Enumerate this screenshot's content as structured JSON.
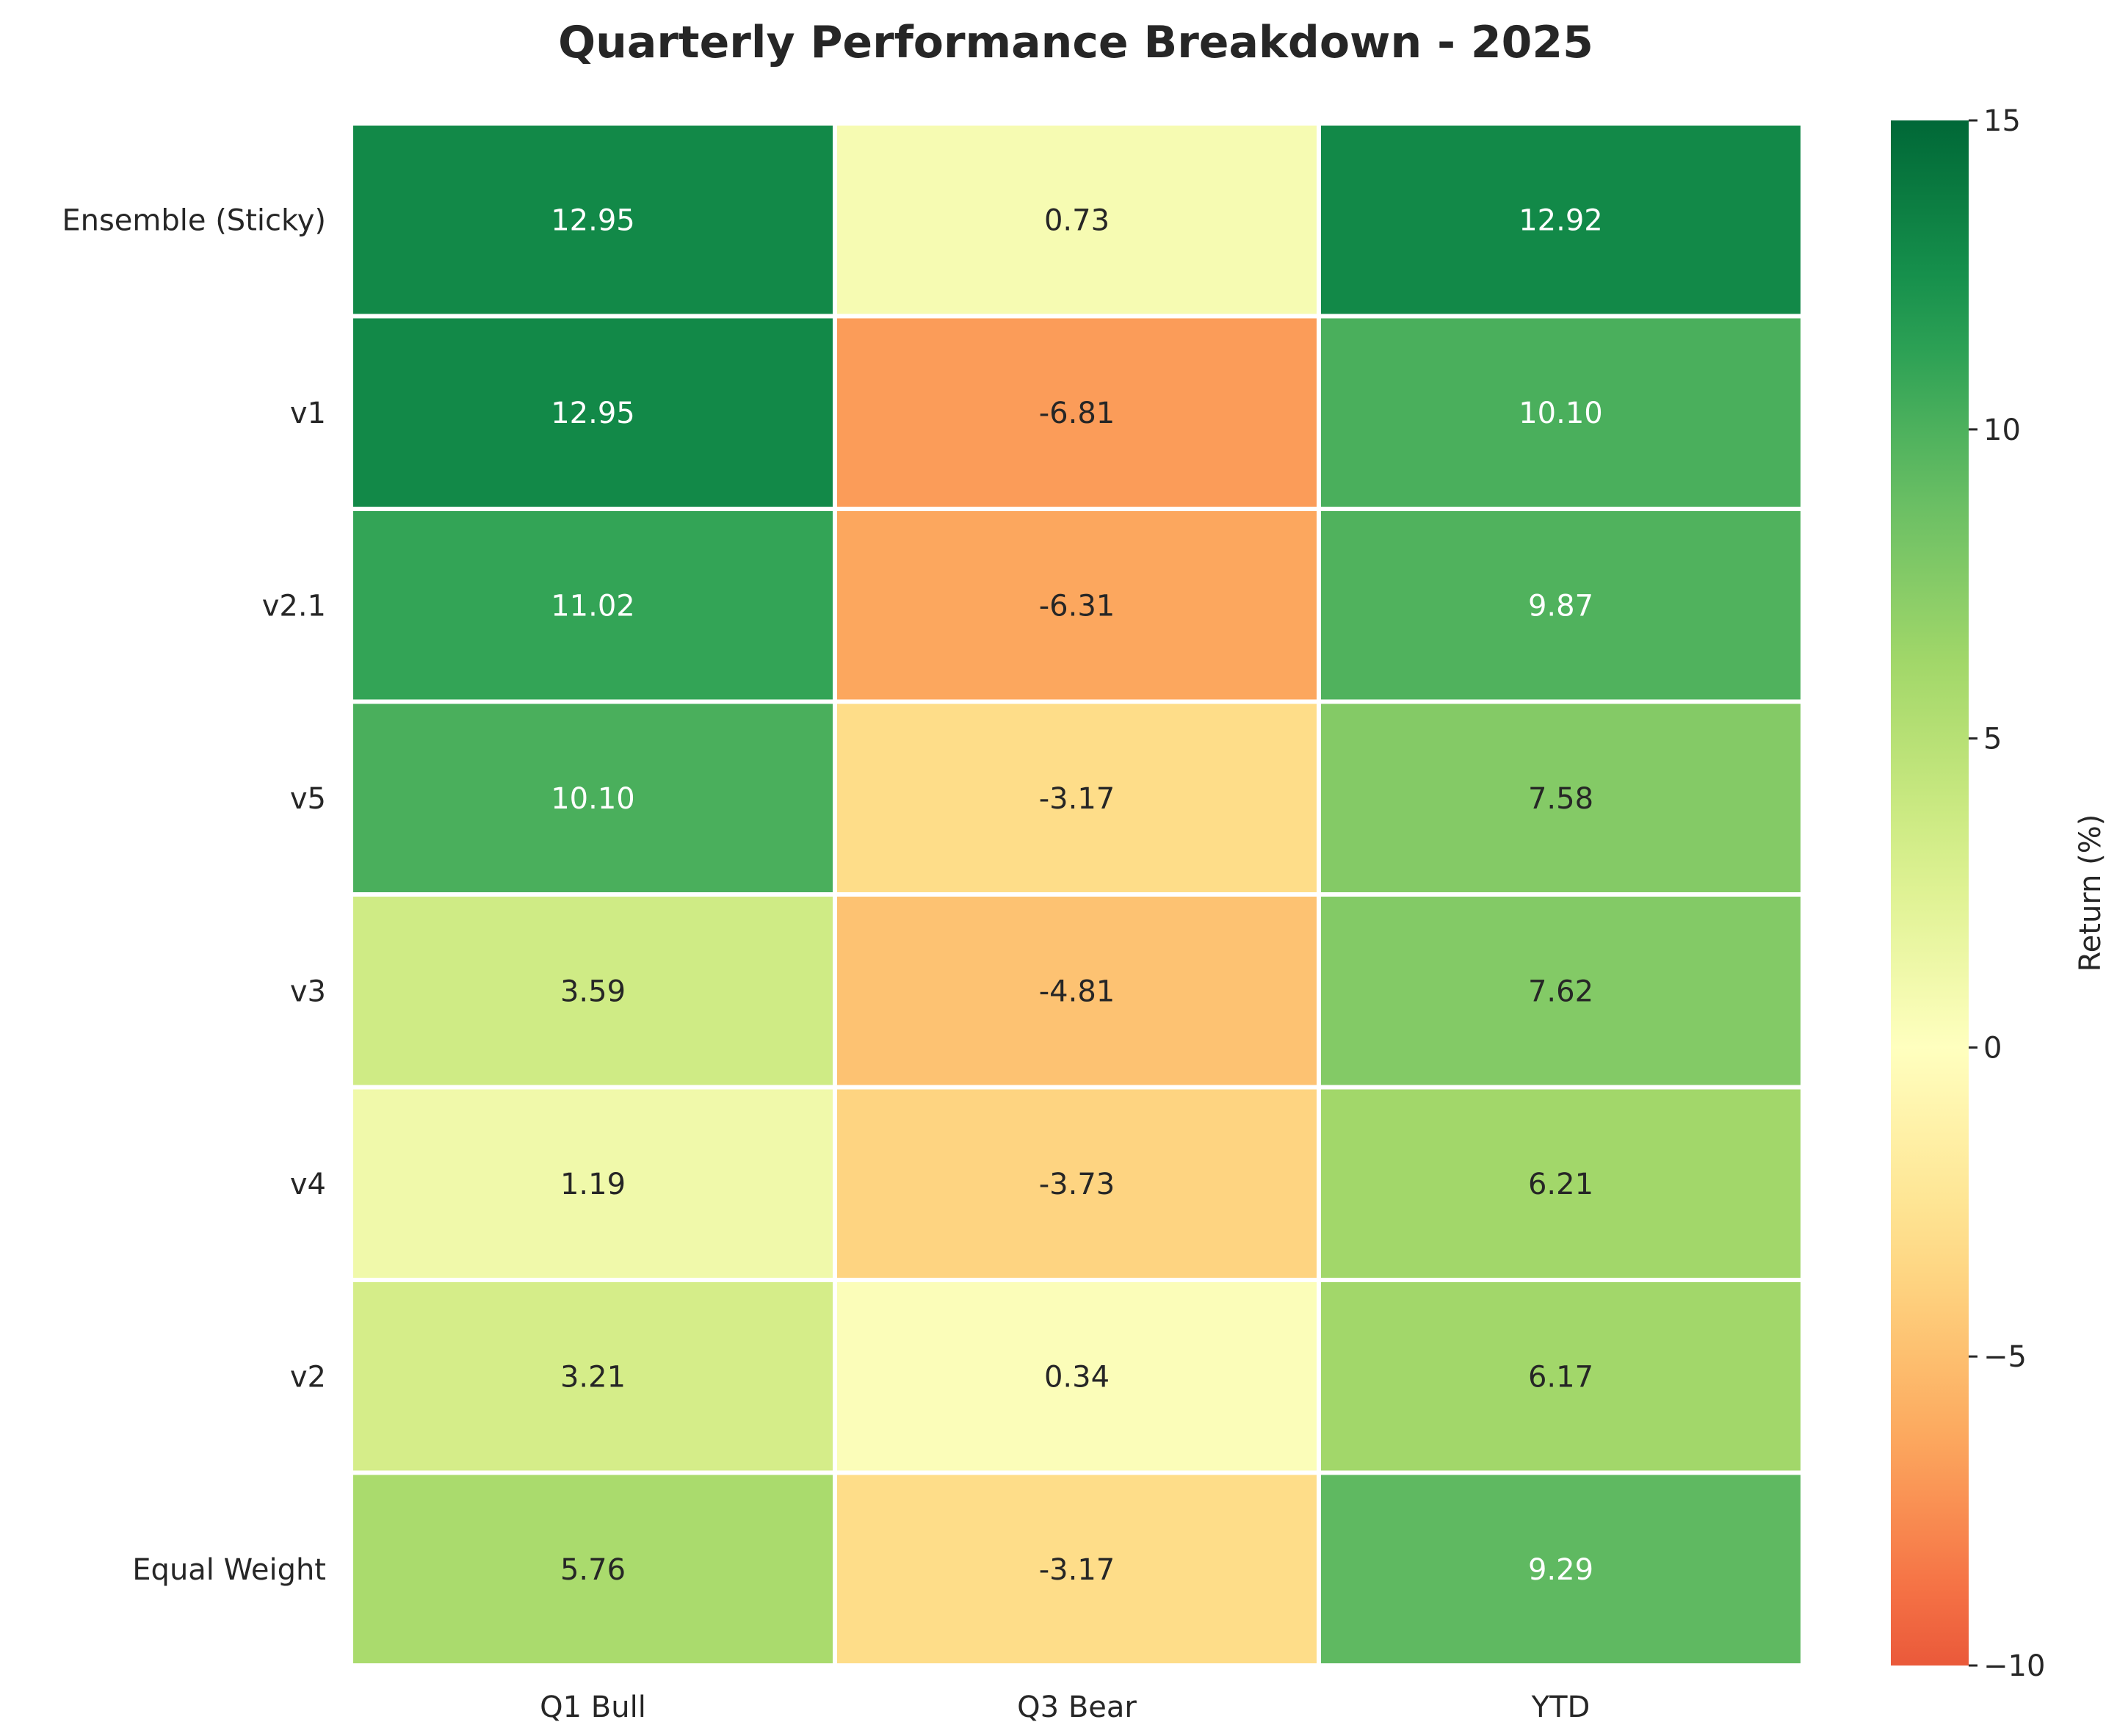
{
  "chart_data": {
    "type": "heatmap",
    "title": "Quarterly Performance Breakdown - 2025",
    "xlabel": "",
    "ylabel": "",
    "columns": [
      "Q1 Bull",
      "Q3 Bear",
      "YTD"
    ],
    "rows": [
      "Ensemble (Sticky)",
      "v1",
      "v2.1",
      "v5",
      "v3",
      "v4",
      "v2",
      "Equal Weight"
    ],
    "values": [
      [
        12.95,
        0.73,
        12.92
      ],
      [
        12.95,
        -6.81,
        10.1
      ],
      [
        11.02,
        -6.31,
        9.87
      ],
      [
        10.1,
        -3.17,
        7.58
      ],
      [
        3.59,
        -4.81,
        7.62
      ],
      [
        1.19,
        -3.73,
        6.21
      ],
      [
        3.21,
        0.34,
        6.17
      ],
      [
        5.76,
        -3.17,
        9.29
      ]
    ],
    "value_format_decimals": 2,
    "colorbar": {
      "label": "Return (%)",
      "vmin": -10,
      "vmax": 15,
      "center": 0,
      "ticks": [
        -10,
        -5,
        0,
        5,
        10,
        15
      ],
      "tick_labels": [
        "−10",
        "−5",
        "0",
        "5",
        "10",
        "15"
      ],
      "colormap": "RdYlGn"
    },
    "grid": false,
    "legend": "colorbar-right",
    "colors": {
      "cell_border": "#ffffff",
      "text_dark": "#262626",
      "text_light": "#ffffff"
    }
  }
}
